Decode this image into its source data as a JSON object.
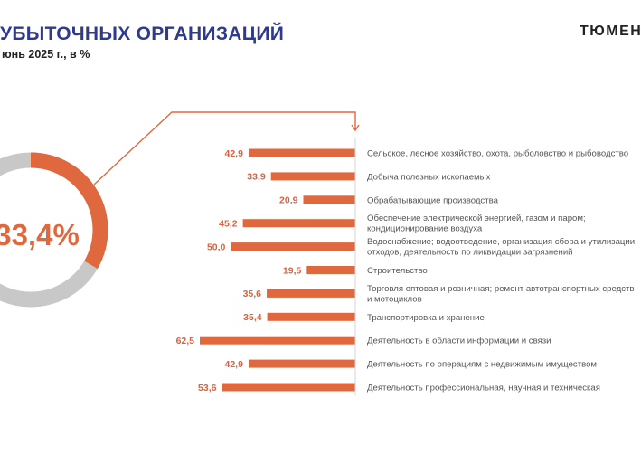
{
  "header": {
    "title": "УБЫТОЧНЫХ ОРГАНИЗАЦИЙ",
    "subtitle": "юнь 2025 г., в %",
    "region": "ТЮМЕН"
  },
  "colors": {
    "accent": "#e0683f",
    "ring_rest": "#c8c8c8",
    "title": "#2f3a8f"
  },
  "chart_data": [
    {
      "type": "pie",
      "variant": "donut",
      "label": "33,4%",
      "values": [
        33.4,
        66.6
      ]
    },
    {
      "type": "bar",
      "orientation": "horizontal",
      "bar_direction": "right-to-left",
      "xlim": [
        0,
        62.5
      ],
      "grid": false,
      "categories": [
        [
          "Сельское, лесное хозяйство, охота, рыболовство и рыбоводство"
        ],
        [
          "Добыча полезных ископаемых"
        ],
        [
          "Обрабатывающие производства"
        ],
        [
          "Обеспечение электрической энергией, газом и паром;",
          "кондиционирование воздуха"
        ],
        [
          "Водоснабжение; водоотведение, организация сбора и утилизации",
          "отходов, деятельность по ликвидации загрязнений"
        ],
        [
          "Строительство"
        ],
        [
          "Торговля оптовая и розничная; ремонт автотранспортных средств",
          "и мотоциклов"
        ],
        [
          "Транспортировка и хранение"
        ],
        [
          "Деятельность в области информации и связи"
        ],
        [
          "Деятельность по операциям с недвижимым имуществом"
        ],
        [
          "Деятельность профессиональная, научная и техническая"
        ]
      ],
      "values": [
        42.9,
        33.9,
        20.9,
        45.2,
        50.0,
        19.5,
        35.6,
        35.4,
        62.5,
        42.9,
        53.6
      ],
      "value_labels": [
        "42,9",
        "33,9",
        "20,9",
        "45,2",
        "50,0",
        "19,5",
        "35,6",
        "35,4",
        "62,5",
        "42,9",
        "53,6"
      ]
    }
  ]
}
